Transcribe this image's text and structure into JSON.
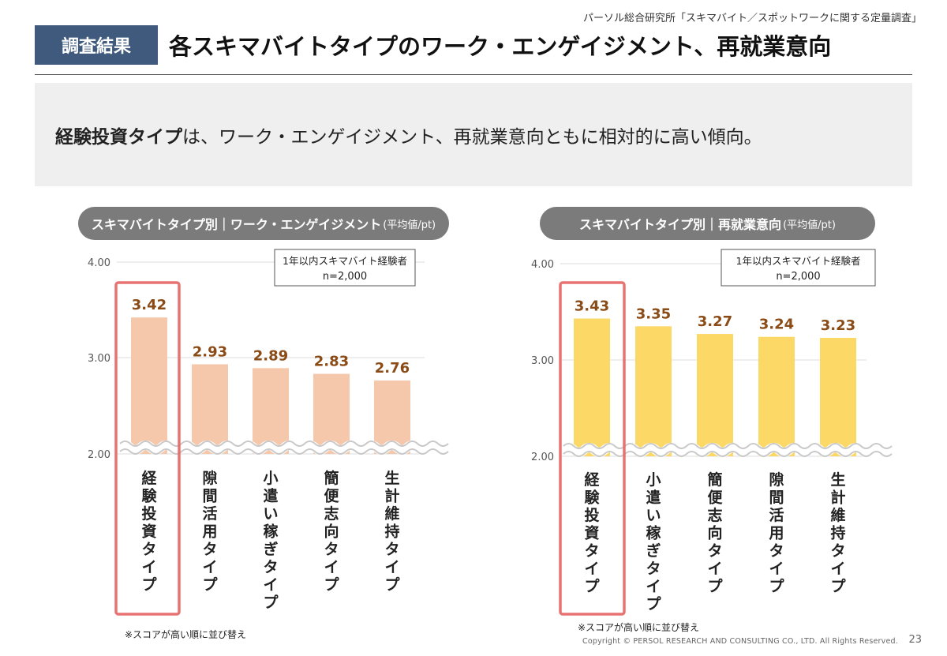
{
  "source": "パーソル総合研究所「スキマバイト／スポットワークに関する定量調査」",
  "tag": "調査結果",
  "title": "各スキマバイトタイプのワーク・エンゲイジメント、再就業意向",
  "summary": {
    "highlight": "経験投資タイプ",
    "rest": "は、ワーク・エンゲイジメント、再就業意向ともに相対的に高い傾向。"
  },
  "footnote": "※スコアが高い順に並び替え",
  "copyright": "Copyright © PERSOL RESEARCH AND CONSULTING CO., LTD. All Rights Reserved.",
  "page_number": "23",
  "colors": {
    "tag_bg": "#3f5a7c",
    "bar_left": "#f6c8ab",
    "bar_right": "#fcd867",
    "value_label": "#8a4b16",
    "highlight_box": "#e76a6a"
  },
  "chart_data": [
    {
      "type": "bar",
      "title_main": "スキマバイトタイプ別｜ワーク・エンゲイジメント",
      "title_unit": "(平均値/pt)",
      "note_line1": "1年以内スキマバイト経験者",
      "note_line2": "n=2,000",
      "categories": [
        "経験投資タイプ",
        "隙間活用タイプ",
        "小遣い稼ぎタイプ",
        "簡便志向タイプ",
        "生計維持タイプ"
      ],
      "values": [
        3.42,
        2.93,
        2.89,
        2.83,
        2.76
      ],
      "value_labels": [
        "3.42",
        "2.93",
        "2.89",
        "2.83",
        "2.76"
      ],
      "ylim": [
        2.0,
        4.0
      ],
      "yticks": [
        "4.00",
        "3.00",
        "2.00"
      ],
      "ytick_values": [
        4.0,
        3.0,
        2.0
      ],
      "axis_break": true,
      "highlighted_index": 0
    },
    {
      "type": "bar",
      "title_main": "スキマバイトタイプ別｜再就業意向",
      "title_unit": "(平均値/pt)",
      "note_line1": "1年以内スキマバイト経験者",
      "note_line2": "n=2,000",
      "categories": [
        "経験投資タイプ",
        "小遣い稼ぎタイプ",
        "簡便志向タイプ",
        "隙間活用タイプ",
        "生計維持タイプ"
      ],
      "values": [
        3.43,
        3.35,
        3.27,
        3.24,
        3.23
      ],
      "value_labels": [
        "3.43",
        "3.35",
        "3.27",
        "3.24",
        "3.23"
      ],
      "ylim": [
        2.0,
        4.0
      ],
      "yticks": [
        "4.00",
        "3.00",
        "2.00"
      ],
      "ytick_values": [
        4.0,
        3.0,
        2.0
      ],
      "axis_break": true,
      "highlighted_index": 0
    }
  ]
}
